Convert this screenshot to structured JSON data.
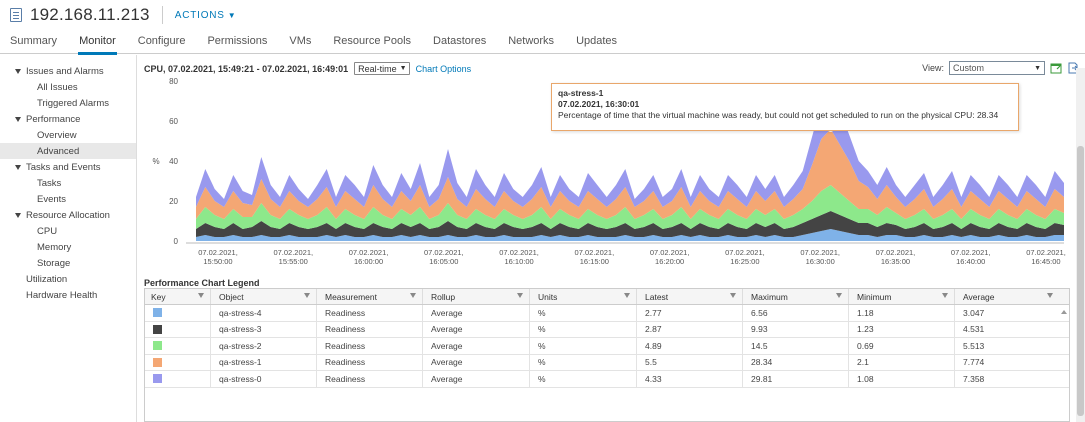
{
  "header": {
    "title": "192.168.11.213",
    "actions_label": "ACTIONS"
  },
  "tabs": [
    {
      "label": "Summary"
    },
    {
      "label": "Monitor"
    },
    {
      "label": "Configure"
    },
    {
      "label": "Permissions"
    },
    {
      "label": "VMs"
    },
    {
      "label": "Resource Pools"
    },
    {
      "label": "Datastores"
    },
    {
      "label": "Networks"
    },
    {
      "label": "Updates"
    }
  ],
  "active_tab": "Monitor",
  "sidebar": {
    "items": [
      {
        "label": "Issues and Alarms",
        "level": 0,
        "expandable": true
      },
      {
        "label": "All Issues",
        "level": 1
      },
      {
        "label": "Triggered Alarms",
        "level": 1
      },
      {
        "label": "Performance",
        "level": 0,
        "expandable": true
      },
      {
        "label": "Overview",
        "level": 1
      },
      {
        "label": "Advanced",
        "level": 1,
        "selected": true
      },
      {
        "label": "Tasks and Events",
        "level": 0,
        "expandable": true
      },
      {
        "label": "Tasks",
        "level": 1
      },
      {
        "label": "Events",
        "level": 1
      },
      {
        "label": "Resource Allocation",
        "level": 0,
        "expandable": true
      },
      {
        "label": "CPU",
        "level": 1
      },
      {
        "label": "Memory",
        "level": 1
      },
      {
        "label": "Storage",
        "level": 1
      },
      {
        "label": "Utilization",
        "level": 0,
        "expandable": false
      },
      {
        "label": "Hardware Health",
        "level": 0,
        "expandable": false
      }
    ]
  },
  "chart_header": {
    "title": "CPU, 07.02.2021, 15:49:21 - 07.02.2021, 16:49:01",
    "interval": "Real-time",
    "chart_options": "Chart Options",
    "view_label": "View:",
    "view_value": "Custom"
  },
  "tooltip": {
    "object": "qa-stress-1",
    "time": "07.02.2021, 16:30:01",
    "text": "Percentage of time that the virtual machine was ready, but could not get scheduled to run on the physical CPU: 28.34"
  },
  "chart_data": {
    "type": "area",
    "stacked": true,
    "ylabel": "%",
    "ylim": [
      0,
      80
    ],
    "yticks": [
      0,
      20,
      40,
      60,
      80
    ],
    "x_ticks": [
      [
        "07.02.2021,",
        "15:50:00"
      ],
      [
        "07.02.2021,",
        "15:55:00"
      ],
      [
        "07.02.2021,",
        "16:00:00"
      ],
      [
        "07.02.2021,",
        "16:05:00"
      ],
      [
        "07.02.2021,",
        "16:10:00"
      ],
      [
        "07.02.2021,",
        "16:15:00"
      ],
      [
        "07.02.2021,",
        "16:20:00"
      ],
      [
        "07.02.2021,",
        "16:25:00"
      ],
      [
        "07.02.2021,",
        "16:30:00"
      ],
      [
        "07.02.2021,",
        "16:35:00"
      ],
      [
        "07.02.2021,",
        "16:40:00"
      ],
      [
        "07.02.2021,",
        "16:45:00"
      ]
    ],
    "series": [
      {
        "name": "qa-stress-4",
        "color": "#7fb2e8",
        "values": [
          2,
          3,
          2,
          2,
          3,
          2,
          2,
          3,
          2,
          2,
          3,
          2,
          2,
          2,
          3,
          2,
          3,
          2,
          2,
          3,
          2,
          2,
          3,
          2,
          3,
          2,
          2,
          3,
          2,
          2,
          3,
          2,
          2,
          3,
          2,
          2,
          2,
          3,
          2,
          3,
          2,
          2,
          3,
          2,
          2,
          2,
          3,
          2,
          2,
          3,
          2,
          2,
          3,
          2,
          3,
          2,
          2,
          3,
          2,
          2,
          3,
          2,
          3,
          2,
          2,
          3,
          4,
          5,
          6,
          5,
          4,
          3,
          3,
          2,
          3,
          3,
          2,
          2,
          3,
          2,
          2,
          3,
          2,
          3,
          2,
          2,
          3,
          2,
          2,
          3,
          2,
          2,
          3,
          3
        ]
      },
      {
        "name": "qa-stress-3",
        "color": "#444444",
        "values": [
          4,
          6,
          5,
          4,
          6,
          4,
          5,
          7,
          5,
          4,
          6,
          5,
          4,
          5,
          6,
          4,
          6,
          5,
          4,
          6,
          5,
          4,
          6,
          5,
          6,
          4,
          5,
          7,
          5,
          4,
          6,
          5,
          4,
          6,
          5,
          4,
          5,
          6,
          4,
          6,
          5,
          4,
          6,
          5,
          4,
          5,
          6,
          4,
          5,
          6,
          4,
          5,
          6,
          4,
          6,
          5,
          4,
          6,
          5,
          4,
          6,
          5,
          6,
          4,
          5,
          6,
          7,
          8,
          9,
          8,
          7,
          6,
          6,
          5,
          6,
          5,
          4,
          5,
          6,
          4,
          5,
          6,
          4,
          6,
          5,
          4,
          6,
          5,
          4,
          6,
          5,
          4,
          6,
          5
        ]
      },
      {
        "name": "qa-stress-2",
        "color": "#8de88b",
        "values": [
          5,
          8,
          6,
          5,
          7,
          6,
          5,
          9,
          6,
          5,
          7,
          6,
          5,
          6,
          8,
          5,
          7,
          6,
          5,
          8,
          6,
          5,
          7,
          6,
          8,
          5,
          6,
          9,
          6,
          5,
          7,
          6,
          5,
          7,
          6,
          5,
          6,
          8,
          5,
          7,
          6,
          5,
          7,
          6,
          5,
          6,
          8,
          5,
          6,
          7,
          5,
          6,
          8,
          5,
          7,
          6,
          5,
          7,
          6,
          5,
          7,
          6,
          7,
          5,
          6,
          7,
          9,
          12,
          13,
          11,
          9,
          7,
          7,
          6,
          8,
          6,
          5,
          6,
          7,
          5,
          6,
          7,
          5,
          7,
          6,
          5,
          7,
          6,
          5,
          7,
          6,
          5,
          7,
          6
        ]
      },
      {
        "name": "qa-stress-1",
        "color": "#f4a774",
        "values": [
          6,
          10,
          7,
          6,
          9,
          7,
          6,
          12,
          8,
          6,
          9,
          7,
          6,
          8,
          10,
          6,
          9,
          8,
          6,
          11,
          8,
          6,
          9,
          7,
          11,
          6,
          8,
          13,
          8,
          6,
          10,
          8,
          6,
          9,
          7,
          6,
          8,
          10,
          6,
          9,
          7,
          6,
          9,
          8,
          6,
          8,
          10,
          6,
          7,
          9,
          6,
          7,
          10,
          6,
          9,
          7,
          6,
          9,
          8,
          6,
          9,
          7,
          9,
          6,
          8,
          10,
          18,
          26,
          28,
          24,
          20,
          14,
          11,
          8,
          11,
          8,
          6,
          8,
          10,
          6,
          8,
          10,
          6,
          9,
          8,
          6,
          9,
          8,
          6,
          9,
          8,
          6,
          10,
          8
        ]
      },
      {
        "name": "qa-stress-0",
        "color": "#9999ee",
        "values": [
          5,
          9,
          6,
          4,
          8,
          6,
          5,
          11,
          7,
          5,
          8,
          6,
          4,
          7,
          9,
          5,
          8,
          7,
          5,
          10,
          7,
          5,
          9,
          6,
          11,
          5,
          7,
          14,
          8,
          5,
          10,
          7,
          5,
          9,
          6,
          5,
          7,
          10,
          5,
          8,
          6,
          5,
          9,
          7,
          5,
          7,
          9,
          4,
          6,
          8,
          5,
          6,
          9,
          5,
          8,
          6,
          5,
          8,
          7,
          5,
          8,
          6,
          8,
          5,
          7,
          9,
          14,
          18,
          20,
          17,
          13,
          10,
          8,
          7,
          9,
          6,
          5,
          7,
          8,
          5,
          7,
          9,
          5,
          8,
          7,
          5,
          8,
          7,
          5,
          8,
          7,
          5,
          9,
          7
        ]
      }
    ]
  },
  "legend": {
    "title": "Performance Chart Legend",
    "columns": [
      "Key",
      "Object",
      "Measurement",
      "Rollup",
      "Units",
      "Latest",
      "Maximum",
      "Minimum",
      "Average"
    ],
    "rows": [
      {
        "color": "#7fb2e8",
        "object": "qa-stress-4",
        "measurement": "Readiness",
        "rollup": "Average",
        "units": "%",
        "latest": "2.77",
        "maximum": "6.56",
        "minimum": "1.18",
        "average": "3.047"
      },
      {
        "color": "#444444",
        "object": "qa-stress-3",
        "measurement": "Readiness",
        "rollup": "Average",
        "units": "%",
        "latest": "2.87",
        "maximum": "9.93",
        "minimum": "1.23",
        "average": "4.531"
      },
      {
        "color": "#8de88b",
        "object": "qa-stress-2",
        "measurement": "Readiness",
        "rollup": "Average",
        "units": "%",
        "latest": "4.89",
        "maximum": "14.5",
        "minimum": "0.69",
        "average": "5.513"
      },
      {
        "color": "#f4a774",
        "object": "qa-stress-1",
        "measurement": "Readiness",
        "rollup": "Average",
        "units": "%",
        "latest": "5.5",
        "maximum": "28.34",
        "minimum": "2.1",
        "average": "7.774"
      },
      {
        "color": "#9999ee",
        "object": "qa-stress-0",
        "measurement": "Readiness",
        "rollup": "Average",
        "units": "%",
        "latest": "4.33",
        "maximum": "29.81",
        "minimum": "1.08",
        "average": "7.358"
      }
    ]
  }
}
